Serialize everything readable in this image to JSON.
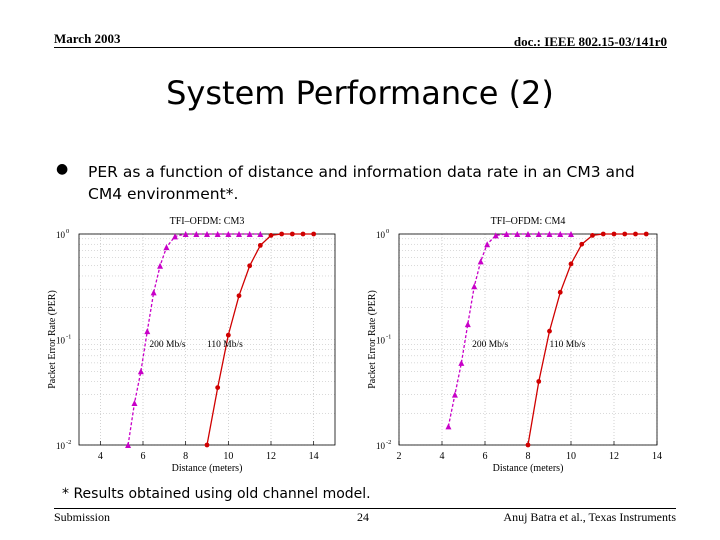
{
  "header": {
    "date": "March 2003",
    "doc_id": "doc.: IEEE 802.15-03/141r0"
  },
  "title": "System Performance (2)",
  "bullet": {
    "symbol": "●",
    "text": "PER as a function of distance and information data rate in an CM3 and CM4 environment*."
  },
  "footnote": "* Results obtained using old channel model.",
  "footer": {
    "left": "Submission",
    "page": "24",
    "right": "Anuj Batra et al., Texas Instruments"
  },
  "colors": {
    "series_200": "#c800c8",
    "series_110": "#d00000",
    "grid": "#b4b4b4"
  },
  "chart_data": [
    {
      "type": "line",
      "title": "TFI–OFDM: CM3",
      "xlabel": "Distance (meters)",
      "ylabel": "Packet Error Rate (PER)",
      "yscale": "log",
      "xlim": [
        3,
        15
      ],
      "ylim": [
        0.01,
        1
      ],
      "xticks": [
        4,
        6,
        8,
        10,
        12,
        14
      ],
      "yticks": [
        {
          "value": 1,
          "label": "10",
          "exp": "0"
        },
        {
          "value": 0.1,
          "label": "10",
          "exp": "-1"
        },
        {
          "value": 0.01,
          "label": "10",
          "exp": "-2"
        }
      ],
      "grid": true,
      "annotations": [
        {
          "text": "200 Mb/s",
          "x": 6.3,
          "y": 0.085
        },
        {
          "text": "110 Mb/s",
          "x": 9.0,
          "y": 0.085
        }
      ],
      "series": [
        {
          "name": "200 Mb/s",
          "color": "#c800c8",
          "marker": "triangle",
          "dash": true,
          "x": [
            5.3,
            5.6,
            5.9,
            6.2,
            6.5,
            6.8,
            7.1,
            7.5,
            8,
            8.5,
            9,
            9.5,
            10,
            10.5,
            11,
            11.5
          ],
          "y": [
            0.01,
            0.025,
            0.05,
            0.12,
            0.28,
            0.5,
            0.75,
            0.95,
            1,
            1,
            1,
            1,
            1,
            1,
            1,
            1
          ]
        },
        {
          "name": "110 Mb/s",
          "color": "#d00000",
          "marker": "circle",
          "dash": false,
          "x": [
            9,
            9.5,
            10,
            10.5,
            11,
            11.5,
            12,
            12.5,
            13,
            13.5,
            14
          ],
          "y": [
            0.01,
            0.035,
            0.11,
            0.26,
            0.5,
            0.78,
            0.97,
            1,
            1,
            1,
            1
          ]
        }
      ]
    },
    {
      "type": "line",
      "title": "TFI–OFDM: CM4",
      "xlabel": "Distance (meters)",
      "ylabel": "Packet Error Rate (PER)",
      "yscale": "log",
      "xlim": [
        2,
        14
      ],
      "ylim": [
        0.01,
        1
      ],
      "xticks": [
        2,
        4,
        6,
        8,
        10,
        12,
        14
      ],
      "yticks": [
        {
          "value": 1,
          "label": "10",
          "exp": "0"
        },
        {
          "value": 0.1,
          "label": "10",
          "exp": "-1"
        },
        {
          "value": 0.01,
          "label": "10",
          "exp": "-2"
        }
      ],
      "grid": true,
      "annotations": [
        {
          "text": "200 Mb/s",
          "x": 5.4,
          "y": 0.085
        },
        {
          "text": "110 Mb/s",
          "x": 9.0,
          "y": 0.085
        }
      ],
      "series": [
        {
          "name": "200 Mb/s",
          "color": "#c800c8",
          "marker": "triangle",
          "dash": true,
          "x": [
            4.3,
            4.6,
            4.9,
            5.2,
            5.5,
            5.8,
            6.1,
            6.5,
            7,
            7.5,
            8,
            8.5,
            9,
            9.5,
            10
          ],
          "y": [
            0.015,
            0.03,
            0.06,
            0.14,
            0.32,
            0.55,
            0.8,
            0.97,
            1,
            1,
            1,
            1,
            1,
            1,
            1
          ]
        },
        {
          "name": "110 Mb/s",
          "color": "#d00000",
          "marker": "circle",
          "dash": false,
          "x": [
            8,
            8.5,
            9,
            9.5,
            10,
            10.5,
            11,
            11.5,
            12,
            12.5,
            13,
            13.5
          ],
          "y": [
            0.01,
            0.04,
            0.12,
            0.28,
            0.52,
            0.8,
            0.97,
            1,
            1,
            1,
            1,
            1
          ]
        }
      ]
    }
  ]
}
